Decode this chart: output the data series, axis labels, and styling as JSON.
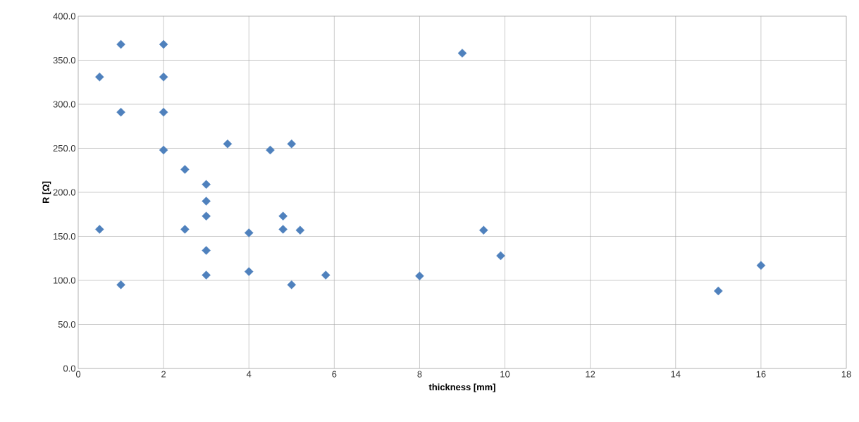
{
  "chart_data": {
    "type": "scatter",
    "xlabel": "thickness [mm]",
    "ylabel": "R [Ω]",
    "x": [
      0.5,
      0.5,
      1,
      1,
      1,
      2,
      2,
      2,
      2,
      2.5,
      2.5,
      3,
      3,
      3,
      3,
      3,
      3.5,
      4,
      4,
      4.5,
      5,
      5,
      4.8,
      4.8,
      5.2,
      5.8,
      8,
      9,
      9.5,
      9.9,
      15,
      16
    ],
    "values": [
      331,
      158,
      368,
      291,
      95,
      368,
      331,
      291,
      248,
      226,
      158,
      209,
      190,
      173,
      134,
      106,
      255,
      154,
      110,
      248,
      255,
      95,
      173,
      158,
      157,
      106,
      105,
      358,
      157,
      128,
      88,
      117
    ],
    "color": "#4f81bd",
    "marker": "diamond",
    "grid": true,
    "xlim": [
      0,
      18
    ],
    "ylim": [
      0,
      400
    ],
    "xticks": [
      0,
      2,
      4,
      6,
      8,
      10,
      12,
      14,
      16,
      18
    ],
    "yticks": [
      {
        "value": 0,
        "label": "0.0"
      },
      {
        "value": 50,
        "label": "50.0"
      },
      {
        "value": 100,
        "label": "100.0"
      },
      {
        "value": 150,
        "label": "150.0"
      },
      {
        "value": 200,
        "label": "200.0"
      },
      {
        "value": 250,
        "label": "250.0"
      },
      {
        "value": 300,
        "label": "300.0"
      },
      {
        "value": 350,
        "label": "350.0"
      },
      {
        "value": 400,
        "label": "400.0"
      }
    ]
  }
}
